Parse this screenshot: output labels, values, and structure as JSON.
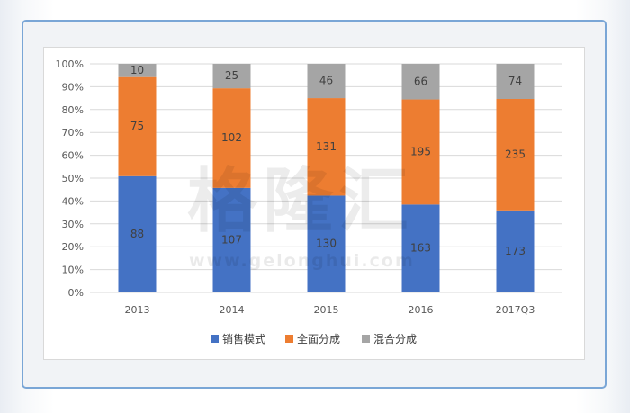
{
  "watermark": {
    "text": "格隆汇",
    "url": "www.gelonghui.com"
  },
  "colors": {
    "series_1": "#4472c4",
    "series_2": "#ed7d31",
    "series_3": "#a5a5a5",
    "grid": "#d9d9d9",
    "frame": "#7aa6d6"
  },
  "chart_data": {
    "type": "bar",
    "stacked": "percent",
    "categories": [
      "2013",
      "2014",
      "2015",
      "2016",
      "2017Q3"
    ],
    "y_ticks": [
      "0%",
      "10%",
      "20%",
      "30%",
      "40%",
      "50%",
      "60%",
      "70%",
      "80%",
      "90%",
      "100%"
    ],
    "ylim": [
      0,
      100
    ],
    "grid": true,
    "legend_position": "bottom",
    "series": [
      {
        "name": "销售模式",
        "color": "#4472c4",
        "values": [
          88,
          107,
          130,
          163,
          173
        ]
      },
      {
        "name": "全面分成",
        "color": "#ed7d31",
        "values": [
          75,
          102,
          131,
          195,
          235
        ]
      },
      {
        "name": "混合分成",
        "color": "#a5a5a5",
        "values": [
          10,
          25,
          46,
          66,
          74
        ]
      }
    ]
  }
}
